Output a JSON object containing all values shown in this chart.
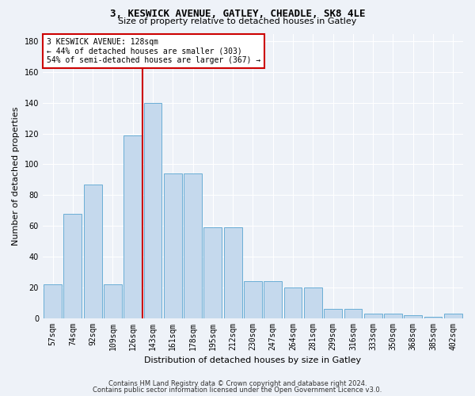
{
  "title1": "3, KESWICK AVENUE, GATLEY, CHEADLE, SK8 4LE",
  "title2": "Size of property relative to detached houses in Gatley",
  "xlabel": "Distribution of detached houses by size in Gatley",
  "ylabel": "Number of detached properties",
  "categories": [
    "57sqm",
    "74sqm",
    "92sqm",
    "109sqm",
    "126sqm",
    "143sqm",
    "161sqm",
    "178sqm",
    "195sqm",
    "212sqm",
    "230sqm",
    "247sqm",
    "264sqm",
    "281sqm",
    "299sqm",
    "316sqm",
    "333sqm",
    "350sqm",
    "368sqm",
    "385sqm",
    "402sqm"
  ],
  "values": [
    22,
    68,
    87,
    22,
    119,
    140,
    94,
    94,
    59,
    59,
    24,
    24,
    20,
    20,
    6,
    6,
    3,
    3,
    2,
    1,
    3
  ],
  "bar_color": "#c5d9ed",
  "bar_edge_color": "#6aaed6",
  "red_line_color": "#cc0000",
  "annotation_text": "3 KESWICK AVENUE: 128sqm\n← 44% of detached houses are smaller (303)\n54% of semi-detached houses are larger (367) →",
  "annotation_box_color": "#ffffff",
  "annotation_box_edge": "#cc0000",
  "footer1": "Contains HM Land Registry data © Crown copyright and database right 2024.",
  "footer2": "Contains public sector information licensed under the Open Government Licence v3.0.",
  "ylim": [
    0,
    185
  ],
  "yticks": [
    0,
    20,
    40,
    60,
    80,
    100,
    120,
    140,
    160,
    180
  ],
  "background_color": "#eef2f8",
  "red_line_x": 4.5,
  "title1_fontsize": 9,
  "title2_fontsize": 8,
  "ylabel_fontsize": 8,
  "xlabel_fontsize": 8,
  "tick_fontsize": 7,
  "annotation_fontsize": 7,
  "footer_fontsize": 6
}
